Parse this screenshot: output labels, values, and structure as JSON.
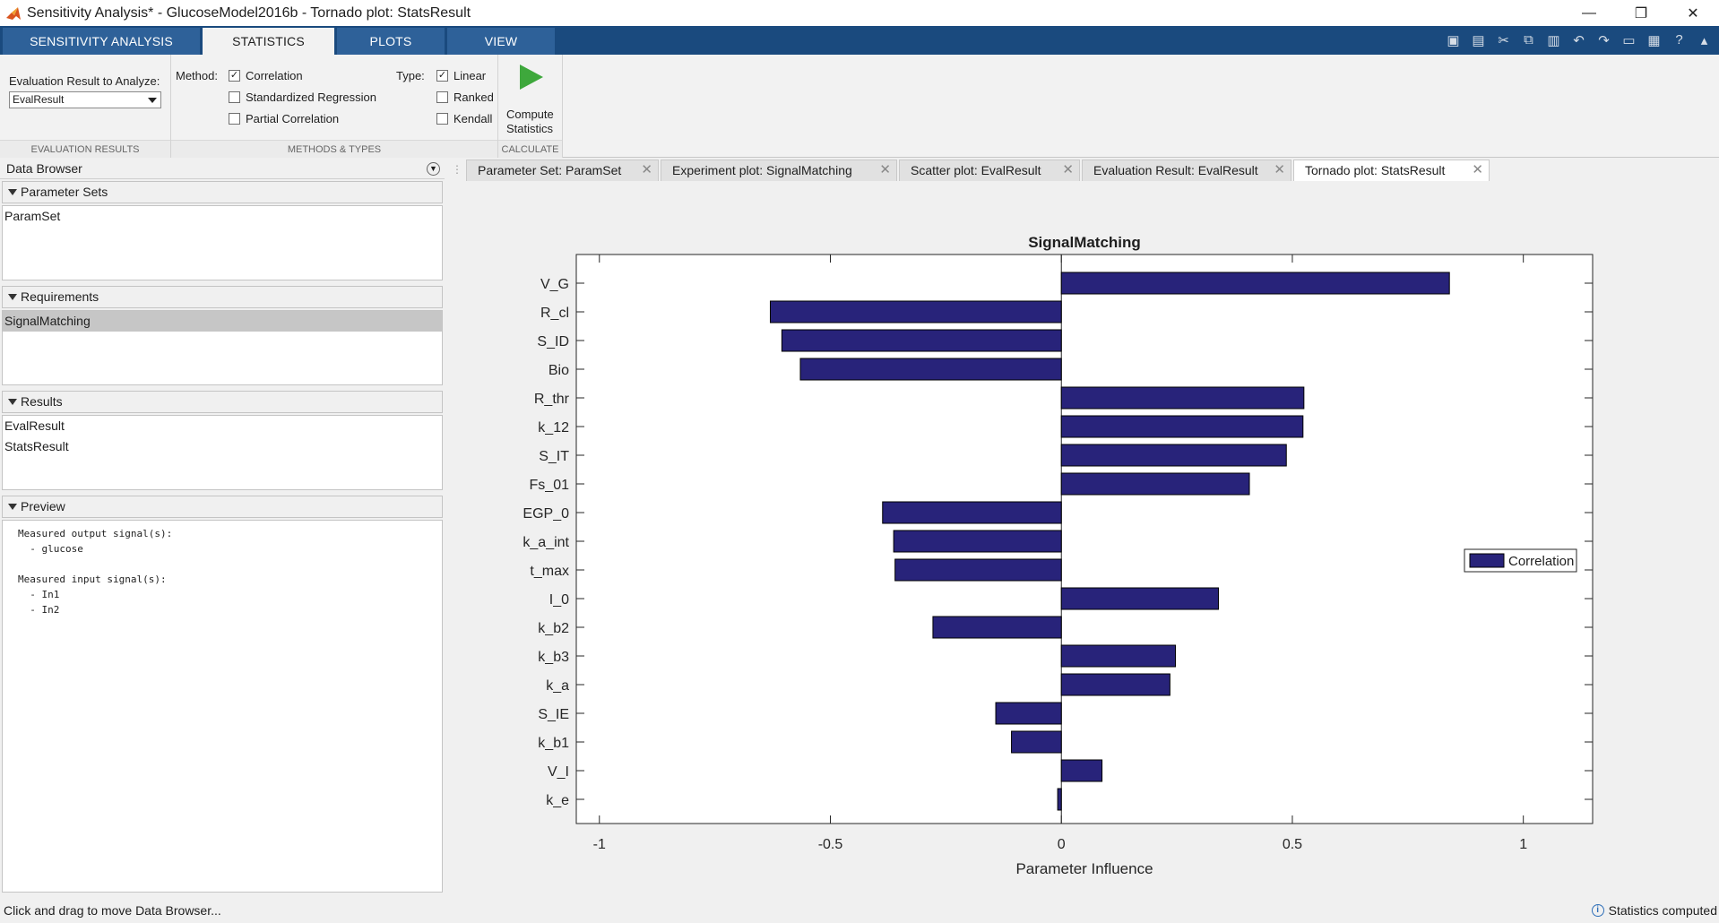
{
  "window": {
    "title": "Sensitivity Analysis* - GlucoseModel2016b - Tornado plot:  StatsResult",
    "minimize": "—",
    "restore": "❐",
    "close": "✕"
  },
  "ribbon_tabs": [
    {
      "label": "SENSITIVITY ANALYSIS",
      "active": false
    },
    {
      "label": "STATISTICS",
      "active": true
    },
    {
      "label": "PLOTS",
      "active": false
    },
    {
      "label": "VIEW",
      "active": false
    }
  ],
  "ribbon": {
    "eval_label": "Evaluation Result to Analyze:",
    "eval_value": "EvalResult",
    "method_label": "Method:",
    "type_label": "Type:",
    "methods": [
      {
        "label": "Correlation",
        "checked": true
      },
      {
        "label": "Standardized Regression",
        "checked": false
      },
      {
        "label": "Partial Correlation",
        "checked": false
      }
    ],
    "types": [
      {
        "label": "Linear",
        "checked": true
      },
      {
        "label": "Ranked",
        "checked": false
      },
      {
        "label": "Kendall",
        "checked": false
      }
    ],
    "compute_line1": "Compute",
    "compute_line2": "Statistics",
    "sections": {
      "eval": "EVALUATION RESULTS",
      "methods": "METHODS & TYPES",
      "calc": "CALCULATE"
    }
  },
  "data_browser": {
    "title": "Data Browser",
    "parameter_sets": {
      "title": "Parameter Sets",
      "items": [
        "ParamSet"
      ]
    },
    "requirements": {
      "title": "Requirements",
      "items": [
        "SignalMatching"
      ]
    },
    "results": {
      "title": "Results",
      "items": [
        "EvalResult",
        "StatsResult"
      ]
    },
    "preview": {
      "title": "Preview",
      "text": "Measured output signal(s):\n  - glucose\n\nMeasured input signal(s):\n  - In1\n  - In2"
    }
  },
  "doc_tabs": [
    {
      "label": "Parameter Set:  ParamSet",
      "active": false
    },
    {
      "label": "Experiment plot: SignalMatching",
      "active": false
    },
    {
      "label": "Scatter plot:  EvalResult",
      "active": false
    },
    {
      "label": "Evaluation Result:  EvalResult",
      "active": false
    },
    {
      "label": "Tornado plot:  StatsResult",
      "active": true
    }
  ],
  "status": {
    "left": "Click and drag to move Data Browser...",
    "right": "Statistics computed"
  },
  "chart_data": {
    "type": "bar",
    "orientation": "horizontal",
    "title": "SignalMatching",
    "xlabel": "Parameter Influence",
    "ylabel": "",
    "xlim": [
      -1.05,
      1.15
    ],
    "xticks": [
      -1,
      -0.5,
      0,
      0.5,
      1
    ],
    "xtick_labels": [
      "-1",
      "-0.5",
      "0",
      "0.5",
      "1"
    ],
    "categories": [
      "V_G",
      "R_cl",
      "S_ID",
      "Bio",
      "R_thr",
      "k_12",
      "S_IT",
      "Fs_01",
      "EGP_0",
      "k_a_int",
      "t_max",
      "I_0",
      "k_b2",
      "k_b3",
      "k_a",
      "S_IE",
      "k_b1",
      "V_I",
      "k_e"
    ],
    "series": [
      {
        "name": "Correlation",
        "color": "#28237a",
        "values": [
          0.84,
          -0.63,
          -0.605,
          -0.565,
          0.525,
          0.523,
          0.487,
          0.407,
          -0.387,
          -0.363,
          -0.36,
          0.34,
          -0.278,
          0.247,
          0.235,
          -0.142,
          -0.108,
          0.088,
          -0.008
        ]
      }
    ],
    "legend_position": "right",
    "grid": false
  }
}
